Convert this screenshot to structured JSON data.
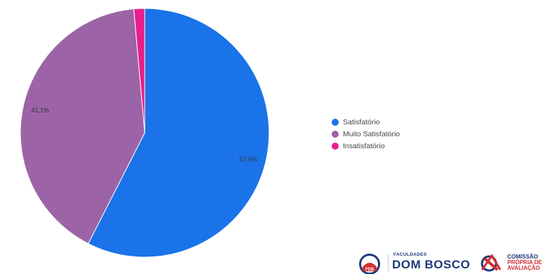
{
  "chart_data": {
    "type": "pie",
    "title": "",
    "categories": [
      "Satisfatório",
      "Muito Satisfatório",
      "Insatisfatório"
    ],
    "values": [
      57.5,
      41.1,
      1.4
    ],
    "value_labels": [
      "57,5%",
      "41,1%",
      ""
    ],
    "colors": [
      "#1a73e8",
      "#9c64a6",
      "#e91e8c"
    ],
    "legend": {
      "position": "right",
      "items": [
        {
          "label": "Satisfatório",
          "color": "#1a73e8"
        },
        {
          "label": "Muito Satisfatório",
          "color": "#9c64a6"
        },
        {
          "label": "Insatisfatório",
          "color": "#e91e8c"
        }
      ]
    }
  },
  "footer": {
    "fdb_small": "FACULDADES",
    "fdb_big": "DOM BOSCO",
    "fdb_seal_text": "FDB",
    "cpa_lines": [
      "COMISSÃO",
      "PRÓPRIA DE",
      "AVALIAÇÃO"
    ]
  }
}
